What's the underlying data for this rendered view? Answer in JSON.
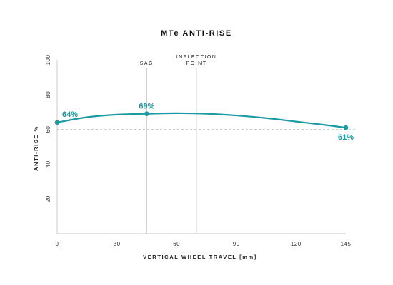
{
  "colors": {
    "series": "#1a9aa2",
    "axis": "#c8c8c8",
    "marker_line": "#cfcfcf",
    "reference_line": "#c4c4c4",
    "text": "#222222"
  },
  "chart_data": {
    "type": "line",
    "title": "MTe ANTI-RISE",
    "xlabel": "VERTICAL WHEEL TRAVEL [mm]",
    "ylabel": "ANTI-RISE %",
    "xlim": [
      0,
      145
    ],
    "ylim": [
      0,
      100
    ],
    "xticks": [
      0,
      30,
      60,
      90,
      120,
      145
    ],
    "yticks": [
      20,
      40,
      60,
      80,
      100
    ],
    "grid": false,
    "series": [
      {
        "x": [
          0,
          15,
          30,
          45,
          60,
          75,
          90,
          105,
          120,
          135,
          145
        ],
        "y": [
          64,
          67,
          68.5,
          69,
          69.3,
          69,
          68,
          66.5,
          64.5,
          62.5,
          61
        ]
      }
    ],
    "data_labels": [
      {
        "x": 0,
        "y": 64,
        "text": "64%"
      },
      {
        "x": 45,
        "y": 69,
        "text": "69%"
      },
      {
        "x": 145,
        "y": 61,
        "text": "61%"
      }
    ],
    "markers": [
      {
        "x": 45,
        "label_lines": [
          "SAG"
        ]
      },
      {
        "x": 70,
        "label_lines": [
          "INFLECTION",
          "POINT"
        ]
      }
    ],
    "reference_line_y": 60
  }
}
